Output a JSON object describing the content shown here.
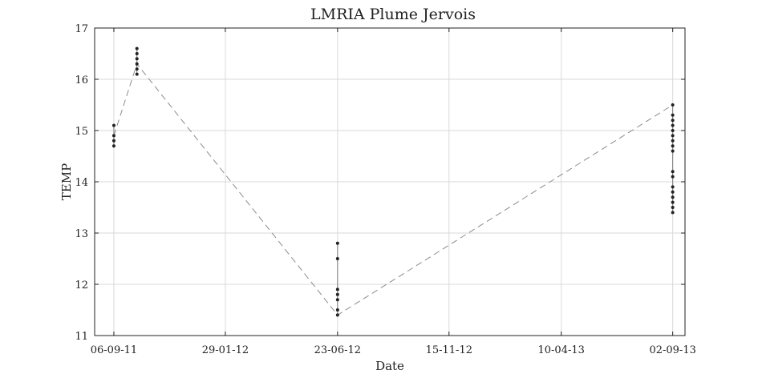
{
  "chart_data": {
    "type": "scatter",
    "title": "LMRIA Plume Jervois",
    "xlabel": "Date",
    "ylabel": "TEMP",
    "x_axis_type": "date",
    "xlim": [
      "2011-08-12",
      "2013-09-18"
    ],
    "ylim": [
      11,
      17
    ],
    "x_ticks": [
      {
        "date": "2011-09-06",
        "label": "06-09-11"
      },
      {
        "date": "2012-01-29",
        "label": "29-01-12"
      },
      {
        "date": "2012-06-23",
        "label": "23-06-12"
      },
      {
        "date": "2012-11-15",
        "label": "15-11-12"
      },
      {
        "date": "2013-04-10",
        "label": "10-04-13"
      },
      {
        "date": "2013-09-02",
        "label": "02-09-13"
      }
    ],
    "y_ticks": [
      11,
      12,
      13,
      14,
      15,
      16,
      17
    ],
    "grid": true,
    "series": [
      {
        "marker_color": "#222222",
        "points": [
          {
            "x": "2011-09-06",
            "y": 15.1
          },
          {
            "x": "2011-09-06",
            "y": 14.9
          },
          {
            "x": "2011-09-06",
            "y": 14.8
          },
          {
            "x": "2011-09-06",
            "y": 14.7
          },
          {
            "x": "2011-10-06",
            "y": 16.6
          },
          {
            "x": "2011-10-06",
            "y": 16.5
          },
          {
            "x": "2011-10-06",
            "y": 16.4
          },
          {
            "x": "2011-10-06",
            "y": 16.3
          },
          {
            "x": "2011-10-06",
            "y": 16.2
          },
          {
            "x": "2011-10-06",
            "y": 16.1
          },
          {
            "x": "2012-06-23",
            "y": 12.8
          },
          {
            "x": "2012-06-23",
            "y": 12.5
          },
          {
            "x": "2012-06-23",
            "y": 11.9
          },
          {
            "x": "2012-06-23",
            "y": 11.8
          },
          {
            "x": "2012-06-23",
            "y": 11.7
          },
          {
            "x": "2012-06-23",
            "y": 11.5
          },
          {
            "x": "2012-06-23",
            "y": 11.4
          },
          {
            "x": "2013-09-02",
            "y": 15.5
          },
          {
            "x": "2013-09-02",
            "y": 15.3
          },
          {
            "x": "2013-09-02",
            "y": 15.2
          },
          {
            "x": "2013-09-02",
            "y": 15.1
          },
          {
            "x": "2013-09-02",
            "y": 15.0
          },
          {
            "x": "2013-09-02",
            "y": 14.9
          },
          {
            "x": "2013-09-02",
            "y": 14.8
          },
          {
            "x": "2013-09-02",
            "y": 14.7
          },
          {
            "x": "2013-09-02",
            "y": 14.6
          },
          {
            "x": "2013-09-02",
            "y": 14.2
          },
          {
            "x": "2013-09-02",
            "y": 14.1
          },
          {
            "x": "2013-09-02",
            "y": 13.9
          },
          {
            "x": "2013-09-02",
            "y": 13.8
          },
          {
            "x": "2013-09-02",
            "y": 13.7
          },
          {
            "x": "2013-09-02",
            "y": 13.6
          },
          {
            "x": "2013-09-02",
            "y": 13.5
          },
          {
            "x": "2013-09-02",
            "y": 13.4
          }
        ]
      },
      {
        "line_style": "dashed",
        "line_color": "#8c8c8c",
        "points": [
          {
            "x": "2011-09-06",
            "y": 14.9
          },
          {
            "x": "2011-10-06",
            "y": 16.3
          },
          {
            "x": "2012-06-23",
            "y": 11.4
          },
          {
            "x": "2013-09-02",
            "y": 15.5
          }
        ]
      }
    ]
  }
}
